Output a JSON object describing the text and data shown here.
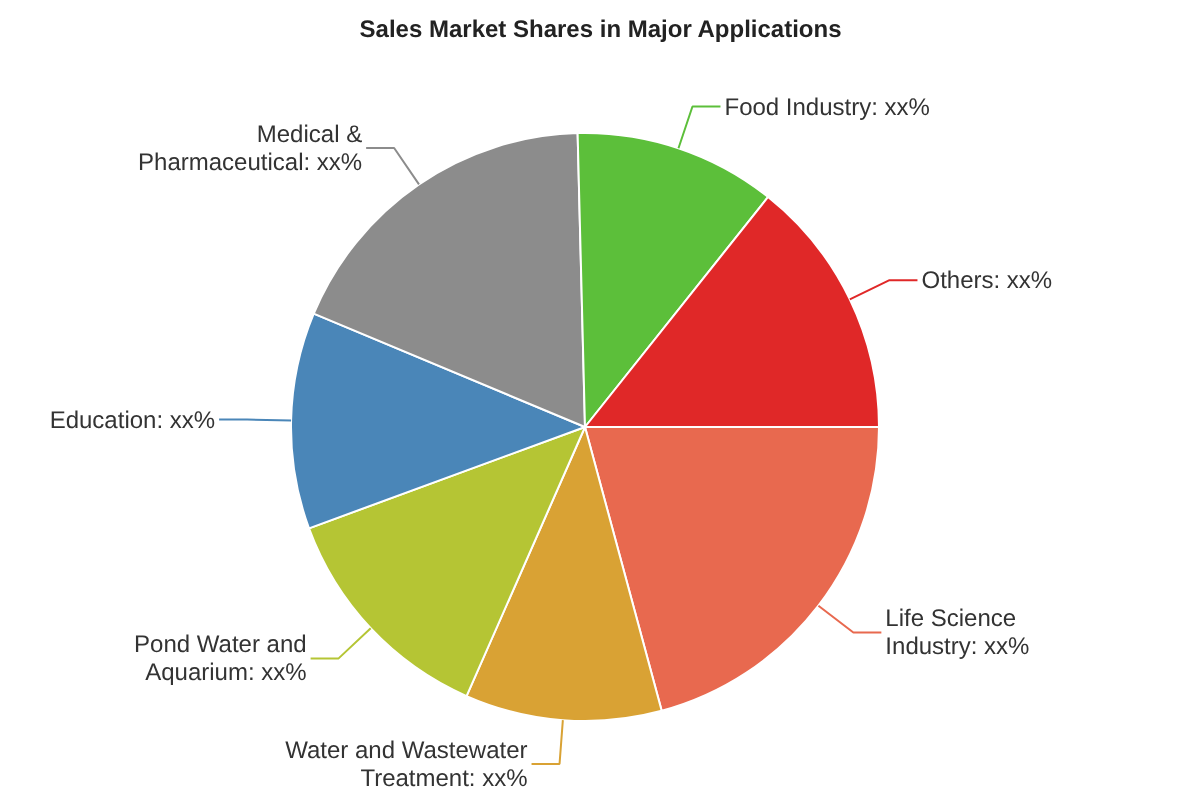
{
  "chart_data": {
    "type": "pie",
    "title": "Sales Market Shares in Major Applications",
    "categories": [
      "Life Science Industry",
      "Water and Wastewater Treatment",
      "Pond Water and Aquarium",
      "Education",
      "Medical & Pharmaceutical",
      "Food Industry",
      "Others"
    ],
    "values": [
      20.8,
      10.8,
      12.8,
      11.9,
      18.3,
      11.1,
      14.3
    ],
    "colors": [
      "#e8694f",
      "#d9a234",
      "#b5c534",
      "#4a86b8",
      "#8c8c8c",
      "#5cbf3a",
      "#e02828"
    ],
    "value_labels": [
      "xx%",
      "xx%",
      "xx%",
      "xx%",
      "xx%",
      "xx%",
      "xx%"
    ]
  }
}
